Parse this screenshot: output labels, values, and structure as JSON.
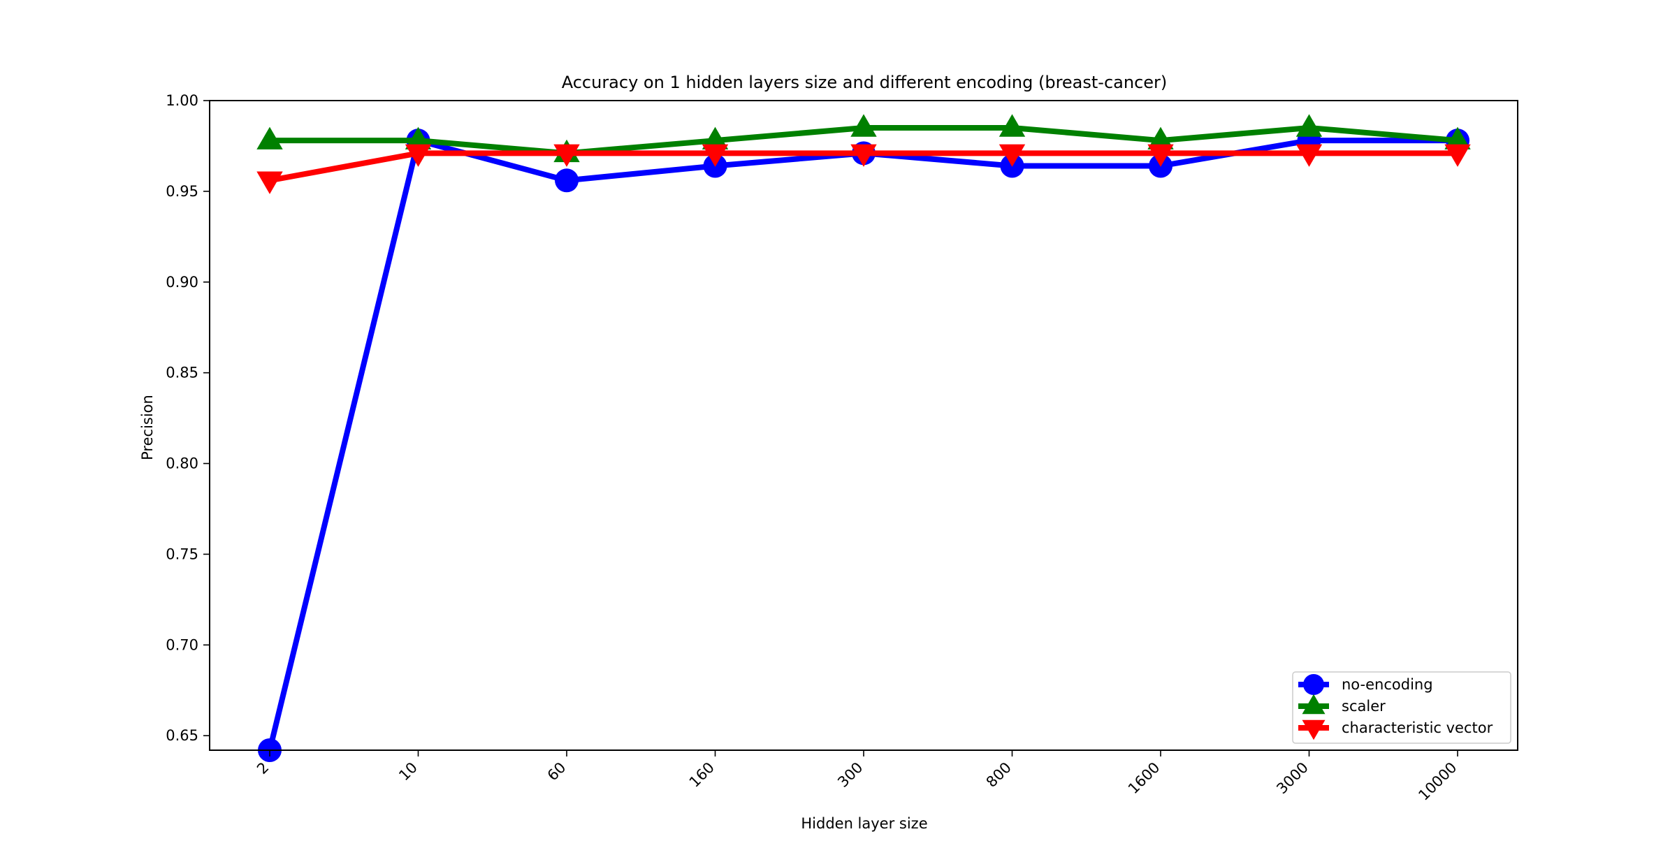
{
  "chart_data": {
    "type": "line",
    "title": "Accuracy on 1 hidden layers size and different encoding (breast-cancer)",
    "xlabel": "Hidden layer size",
    "ylabel": "Precision",
    "categories": [
      "2",
      "10",
      "60",
      "160",
      "300",
      "800",
      "1600",
      "3000",
      "10000"
    ],
    "ylim": [
      0.642,
      1.0
    ],
    "yticks": [
      "0.65",
      "0.70",
      "0.75",
      "0.80",
      "0.85",
      "0.90",
      "0.95",
      "1.00"
    ],
    "grid": false,
    "legend_position": "lower-right",
    "series": [
      {
        "name": "no-encoding",
        "color": "#0000ff",
        "marker": "circle",
        "values": [
          0.642,
          0.978,
          0.956,
          0.964,
          0.971,
          0.964,
          0.964,
          0.978,
          0.978
        ]
      },
      {
        "name": "scaler",
        "color": "#008000",
        "marker": "triangle-up",
        "values": [
          0.978,
          0.978,
          0.971,
          0.978,
          0.985,
          0.985,
          0.978,
          0.985,
          0.978
        ]
      },
      {
        "name": "characteristic vector",
        "color": "#ff0000",
        "marker": "triangle-down",
        "values": [
          0.956,
          0.971,
          0.971,
          0.971,
          0.971,
          0.971,
          0.971,
          0.971,
          0.971
        ]
      }
    ]
  }
}
